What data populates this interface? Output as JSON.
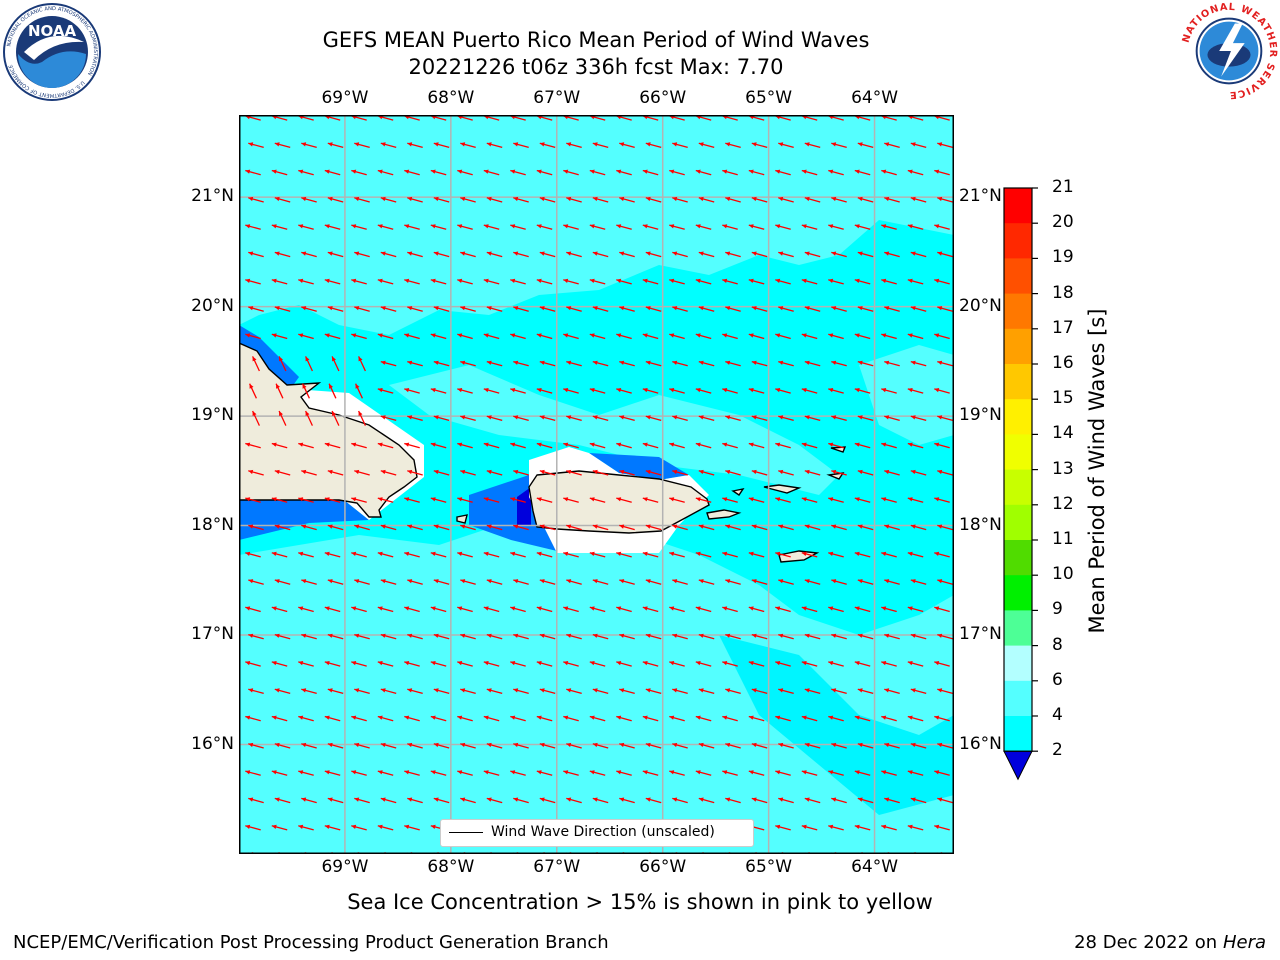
{
  "title": {
    "line1": "GEFS MEAN Puerto Rico Mean Period of Wind Waves",
    "line2": "20221226 t06z 336h fcst   Max: 7.70"
  },
  "logos": {
    "left": {
      "name": "NOAA",
      "ring_text": "NATIONAL OCEANIC AND ATMOSPHERIC ADMINISTRATION",
      "ring_text_bottom": "U.S. DEPARTMENT OF COMMERCE"
    },
    "right": {
      "name": "National Weather Service",
      "ring_text": "NATIONAL WEATHER SERVICE"
    }
  },
  "map": {
    "lon_labels": [
      "69°W",
      "68°W",
      "67°W",
      "66°W",
      "65°W",
      "64°W"
    ],
    "lat_labels": [
      "21°N",
      "20°N",
      "19°N",
      "18°N",
      "17°N",
      "16°N"
    ],
    "lon_values": [
      -69,
      -68,
      -67,
      -66,
      -65,
      -64
    ],
    "lat_values": [
      21,
      20,
      19,
      18,
      17,
      16
    ],
    "extent": {
      "lon_min": -70.0,
      "lon_max": -63.25,
      "lat_min": 15.0,
      "lat_max": 21.75
    },
    "background_color": "#00ffff",
    "land_color": "#efecdc",
    "vector_color": "#ff0000",
    "legend_label": "Wind Wave Direction (unscaled)"
  },
  "colorbar": {
    "label": "Mean Period of Wind Waves [s]",
    "ticks": [
      "21",
      "20",
      "19",
      "18",
      "17",
      "16",
      "15",
      "14",
      "13",
      "12",
      "11",
      "10",
      "9",
      "8",
      "6",
      "4",
      "2"
    ],
    "colors": [
      "#ff0000",
      "#ff2800",
      "#ff5000",
      "#ff7800",
      "#ffa000",
      "#ffc800",
      "#fff000",
      "#f0ff00",
      "#c8ff00",
      "#a0ff00",
      "#50dc00",
      "#00f000",
      "#00e664",
      "#4dff96",
      "#b3ffff",
      "#54ffff",
      "#00f5ff",
      "#0078ff",
      "#0000dc"
    ]
  },
  "caption": "Sea Ice Concentration > 15% is shown in pink to yellow",
  "footer": {
    "left": "NCEP/EMC/Verification Post Processing Product Generation Branch",
    "right_prefix": "28 Dec 2022 on",
    "right_host": "Hera"
  }
}
